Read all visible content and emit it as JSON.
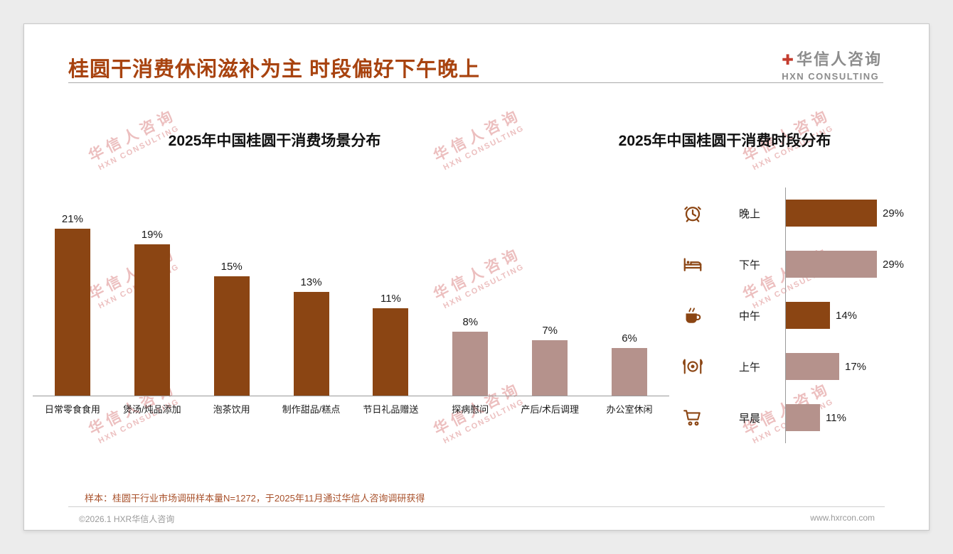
{
  "page": {
    "title": "桂圆干消费休闲滋补为主 时段偏好下午晚上",
    "sample_note": "样本：桂圆干行业市场调研样本量N=1272，于2025年11月通过华信人咨询调研获得",
    "footer_left": "©2026.1 HXR华信人咨询",
    "footer_right": "www.hxrcon.com"
  },
  "logo": {
    "mark": "✚",
    "name_cn": "华信人咨询",
    "name_en": "HXN CONSULTING"
  },
  "watermark": {
    "line1": "华信人咨询",
    "line2": "HXN CONSULTING"
  },
  "colors": {
    "title_color": "#A8430F",
    "dark_bar": "#8B4513",
    "light_bar": "#B5928C",
    "note_color": "#A8502A",
    "watermark_color": "#DD8C8C",
    "logo_red": "#C43C2E",
    "logo_gray": "#8C8C8C",
    "axis_color": "#9A9A9A"
  },
  "chart_data": [
    {
      "type": "bar",
      "orientation": "vertical",
      "title": "2025年中国桂圆干消费场景分布",
      "categories": [
        "日常零食食用",
        "煲汤/炖品添加",
        "泡茶饮用",
        "制作甜品/糕点",
        "节日礼品赠送",
        "探病慰问",
        "产后/术后调理",
        "办公室休闲"
      ],
      "values": [
        21,
        19,
        15,
        13,
        11,
        8,
        7,
        6
      ],
      "unit": "%",
      "bar_styles": [
        "dark",
        "dark",
        "dark",
        "dark",
        "dark",
        "light",
        "light",
        "light"
      ],
      "ylim": [
        0,
        25
      ],
      "grid": false,
      "legend": "none",
      "value_labels": "above bars"
    },
    {
      "type": "bar",
      "orientation": "horizontal",
      "title": "2025年中国桂圆干消费时段分布",
      "categories": [
        "晚上",
        "下午",
        "中午",
        "上午",
        "早晨"
      ],
      "values": [
        29,
        29,
        14,
        17,
        11
      ],
      "unit": "%",
      "bar_styles": [
        "dark",
        "light",
        "dark",
        "light",
        "light"
      ],
      "icons": [
        "alarm-clock-icon",
        "bed-icon",
        "coffee-icon",
        "dining-icon",
        "cart-icon"
      ],
      "xlim": [
        0,
        32
      ],
      "grid": false,
      "legend": "none",
      "value_labels": "right of bars"
    }
  ]
}
